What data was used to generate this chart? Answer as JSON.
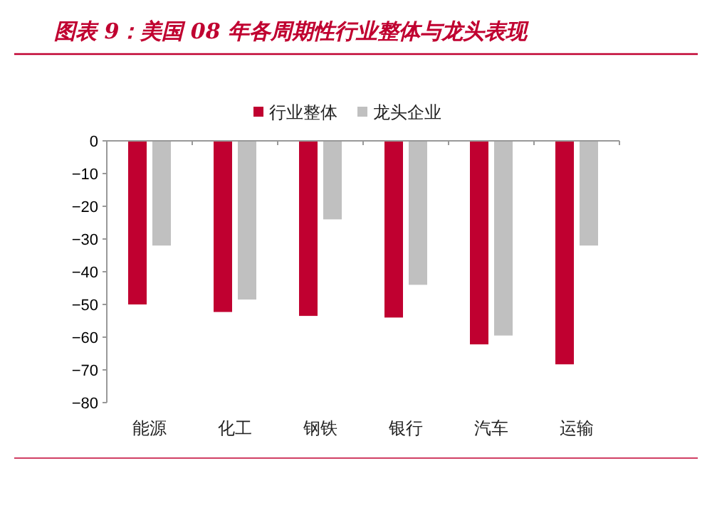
{
  "chart_data": {
    "type": "bar",
    "title": "图表 9：美国 08 年各周期性行业整体与龙头表现",
    "categories": [
      "能源",
      "化工",
      "钢铁",
      "银行",
      "汽车",
      "运输"
    ],
    "series": [
      {
        "name": "行业整体",
        "color": "#c00030",
        "values": [
          -50,
          -52.3,
          -53.5,
          -54,
          -62.2,
          -68.3
        ]
      },
      {
        "name": "龙头企业",
        "color": "#c0c0c0",
        "values": [
          -32,
          -48.5,
          -24,
          -44,
          -59.5,
          -32
        ]
      }
    ],
    "ylim": [
      -80,
      0
    ],
    "yticks": [
      -80,
      -70,
      -60,
      -50,
      -40,
      -30,
      -20,
      -10,
      0
    ],
    "legend": "top",
    "grid": false
  }
}
